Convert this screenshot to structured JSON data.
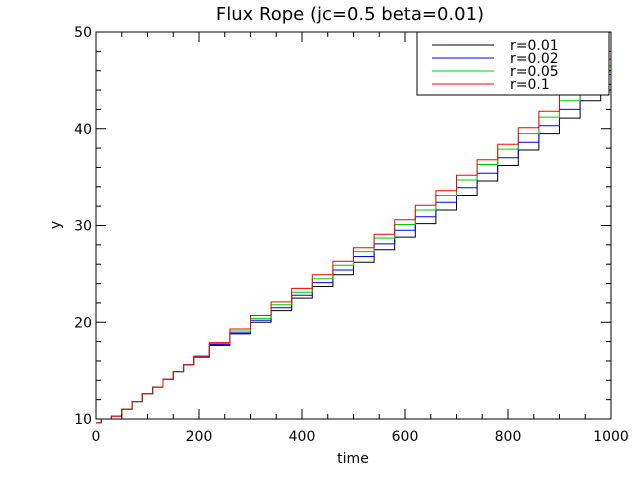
{
  "chart_data": {
    "type": "line",
    "title": "Flux Rope (jc=0.5 beta=0.01)",
    "xlabel": "time",
    "ylabel": "y",
    "xlim": [
      0,
      1000
    ],
    "ylim": [
      10,
      50
    ],
    "xticks": [
      0,
      200,
      400,
      600,
      800,
      1000
    ],
    "yticks": [
      10,
      20,
      30,
      40,
      50
    ],
    "grid": false,
    "legend_position": "top-right",
    "series": [
      {
        "name": "r=0.01",
        "color": "#000000",
        "x": [
          0,
          20,
          40,
          60,
          80,
          100,
          120,
          140,
          160,
          180,
          200,
          240,
          280,
          320,
          360,
          400,
          440,
          480,
          520,
          560,
          600,
          640,
          680,
          720,
          760,
          800,
          840,
          880,
          920,
          960,
          1000
        ],
        "y": [
          9.6,
          10.0,
          10.3,
          11.0,
          11.8,
          12.6,
          13.3,
          14.1,
          14.9,
          15.6,
          16.4,
          17.6,
          18.8,
          20.0,
          21.2,
          22.5,
          23.7,
          24.9,
          26.2,
          27.5,
          28.8,
          30.2,
          31.6,
          33.1,
          34.6,
          36.2,
          37.8,
          39.5,
          41.1,
          42.9,
          44.6
        ]
      },
      {
        "name": "r=0.02",
        "color": "#0000ff",
        "x": [
          0,
          20,
          40,
          60,
          80,
          100,
          120,
          140,
          160,
          180,
          200,
          240,
          280,
          320,
          360,
          400,
          440,
          480,
          520,
          560,
          600,
          640,
          680,
          720,
          760,
          800,
          840,
          880,
          920,
          960,
          1000
        ],
        "y": [
          9.6,
          10.0,
          10.3,
          11.0,
          11.8,
          12.6,
          13.3,
          14.1,
          14.9,
          15.6,
          16.4,
          17.7,
          18.9,
          20.2,
          21.5,
          22.8,
          24.1,
          25.4,
          26.8,
          28.1,
          29.5,
          30.9,
          32.4,
          33.9,
          35.4,
          37.0,
          38.6,
          40.3,
          42.0,
          43.8,
          45.6
        ]
      },
      {
        "name": "r=0.05",
        "color": "#00cc00",
        "x": [
          0,
          20,
          40,
          60,
          80,
          100,
          120,
          140,
          160,
          180,
          200,
          240,
          280,
          320,
          360,
          400,
          440,
          480,
          520,
          560,
          600,
          640,
          680,
          720,
          760,
          800,
          840,
          880,
          920,
          960,
          1000
        ],
        "y": [
          9.6,
          10.0,
          10.3,
          11.0,
          11.8,
          12.6,
          13.3,
          14.1,
          14.9,
          15.6,
          16.5,
          17.8,
          19.1,
          20.4,
          21.8,
          23.1,
          24.5,
          25.9,
          27.3,
          28.7,
          30.1,
          31.6,
          33.1,
          34.7,
          36.3,
          37.9,
          39.5,
          41.2,
          42.9,
          44.7,
          46.5
        ]
      },
      {
        "name": "r=0.1",
        "color": "#ff0000",
        "x": [
          0,
          20,
          40,
          60,
          80,
          100,
          120,
          140,
          160,
          180,
          200,
          240,
          280,
          320,
          360,
          400,
          440,
          480,
          520,
          560,
          600,
          640,
          680,
          720,
          760,
          800,
          840,
          880,
          920,
          960,
          1000
        ],
        "y": [
          9.6,
          10.0,
          10.3,
          11.0,
          11.8,
          12.6,
          13.3,
          14.1,
          14.9,
          15.6,
          16.5,
          17.9,
          19.3,
          20.7,
          22.1,
          23.5,
          24.9,
          26.3,
          27.7,
          29.1,
          30.6,
          32.1,
          33.6,
          35.2,
          36.8,
          38.4,
          40.1,
          41.8,
          43.5,
          45.3,
          47.2
        ]
      }
    ]
  }
}
